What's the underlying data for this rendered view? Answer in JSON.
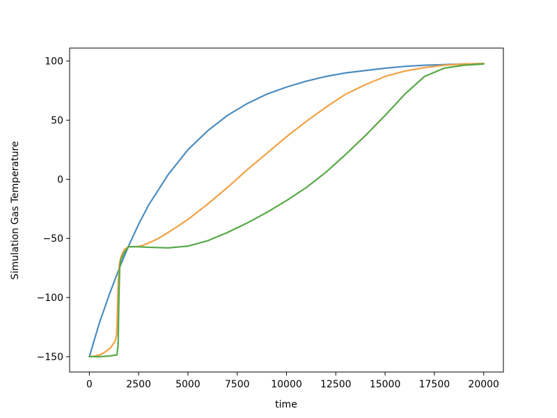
{
  "chart_data": {
    "type": "line",
    "title": "",
    "xlabel": "time",
    "ylabel": "Simulation Gas Temperature",
    "xlim": [
      -1000,
      21000
    ],
    "ylim": [
      -163,
      111
    ],
    "xticks": [
      0,
      2500,
      5000,
      7500,
      10000,
      12500,
      15000,
      17500,
      20000
    ],
    "xtick_labels": [
      "0",
      "2500",
      "5000",
      "7500",
      "10000",
      "12500",
      "15000",
      "17500",
      "20000"
    ],
    "yticks": [
      -150,
      -100,
      -50,
      0,
      50,
      100
    ],
    "ytick_labels": [
      "−150",
      "−100",
      "−50",
      "0",
      "50",
      "100"
    ],
    "grid": false,
    "legend": "none",
    "series": [
      {
        "color": "#4c8cbf",
        "x": [
          0,
          500,
          1000,
          1500,
          2000,
          2500,
          3000,
          4000,
          5000,
          6000,
          7000,
          8000,
          9000,
          10000,
          11000,
          12000,
          13000,
          14000,
          15000,
          16000,
          17000,
          18000,
          19000,
          20000
        ],
        "y": [
          -150,
          -122,
          -98,
          -76,
          -56,
          -38,
          -22,
          4,
          25,
          41,
          54,
          64,
          72,
          78,
          83,
          87,
          90,
          92,
          94,
          95.5,
          96.5,
          97,
          97.5,
          98
        ]
      },
      {
        "color": "#f0a142",
        "x": [
          0,
          300,
          600,
          900,
          1100,
          1300,
          1380,
          1420,
          1460,
          1520,
          1600,
          1700,
          1800,
          2000,
          2300,
          2600,
          3000,
          3500,
          4000,
          5000,
          6000,
          7000,
          8000,
          9000,
          10000,
          11000,
          12000,
          13000,
          14000,
          15000,
          16000,
          17000,
          18000,
          19000,
          20000
        ],
        "y": [
          -150,
          -149.5,
          -148,
          -145,
          -142,
          -137,
          -132,
          -115,
          -90,
          -72,
          -66,
          -62,
          -59,
          -57,
          -57,
          -56.5,
          -54,
          -50,
          -45,
          -34,
          -21,
          -7,
          8,
          22,
          36,
          49,
          61,
          72,
          80,
          87,
          91.5,
          94.5,
          96.5,
          97.5,
          98
        ]
      },
      {
        "color": "#55a846",
        "x": [
          0,
          500,
          1000,
          1400,
          1460,
          1500,
          1540,
          1600,
          1800,
          2000,
          2400,
          3000,
          4000,
          5000,
          6000,
          7000,
          8000,
          9000,
          10000,
          11000,
          12000,
          13000,
          14000,
          15000,
          16000,
          17000,
          18000,
          19000,
          20000
        ],
        "y": [
          -150,
          -150,
          -149.5,
          -148.5,
          -140,
          -100,
          -75,
          -68,
          -61,
          -57,
          -57,
          -57.5,
          -58,
          -56.5,
          -52,
          -45,
          -37,
          -28,
          -18,
          -7,
          6,
          21,
          37,
          54,
          72,
          87,
          94,
          96.5,
          97.5
        ]
      }
    ]
  }
}
